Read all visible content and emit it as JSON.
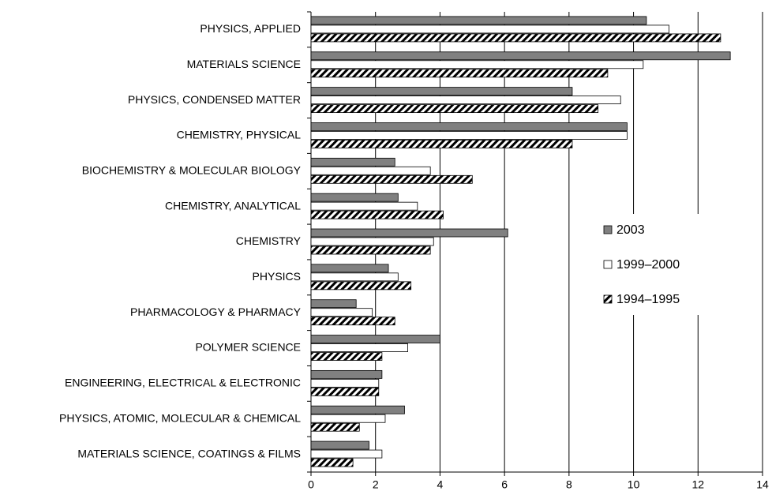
{
  "chart_data": {
    "type": "barh",
    "categories": [
      "PHYSICS, APPLIED",
      "MATERIALS SCIENCE",
      "PHYSICS, CONDENSED MATTER",
      "CHEMISTRY, PHYSICAL",
      "BIOCHEMISTRY & MOLECULAR BIOLOGY",
      "CHEMISTRY, ANALYTICAL",
      "CHEMISTRY",
      "PHYSICS",
      "PHARMACOLOGY & PHARMACY",
      "POLYMER SCIENCE",
      "ENGINEERING, ELECTRICAL & ELECTRONIC",
      "PHYSICS, ATOMIC, MOLECULAR & CHEMICAL",
      "MATERIALS SCIENCE, COATINGS & FILMS"
    ],
    "series": [
      {
        "name": "2003",
        "color": "#808080",
        "values": [
          10.4,
          13.0,
          8.1,
          9.8,
          2.6,
          2.7,
          6.1,
          2.4,
          1.4,
          4.0,
          2.2,
          2.9,
          1.8
        ]
      },
      {
        "name": "1999–2000",
        "color": "#ffffff",
        "values": [
          11.1,
          10.3,
          9.6,
          9.8,
          3.7,
          3.3,
          3.8,
          2.7,
          1.9,
          3.0,
          2.1,
          2.3,
          2.2
        ]
      },
      {
        "name": "1994–1995",
        "color": "#000000",
        "pattern": "hatch",
        "values": [
          12.7,
          9.2,
          8.9,
          8.1,
          5.0,
          4.1,
          3.7,
          3.1,
          2.6,
          2.2,
          2.1,
          1.5,
          1.3
        ]
      }
    ],
    "xlim": [
      0,
      14
    ],
    "xticks": [
      0,
      2,
      4,
      6,
      8,
      10,
      12,
      14
    ],
    "grid": true,
    "legend": "right"
  }
}
